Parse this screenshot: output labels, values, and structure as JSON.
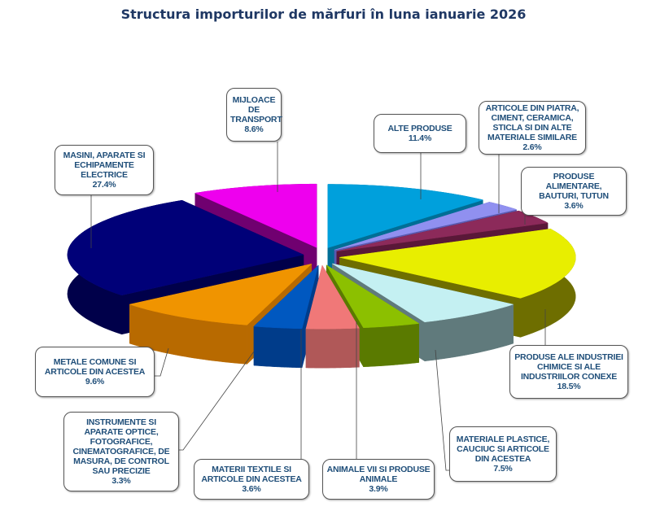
{
  "chart_data": {
    "type": "pie",
    "title": "Structura importurilor de mărfuri în luna ianuarie 2026",
    "unit": "%",
    "slices": [
      {
        "label": "ALTE PRODUSE",
        "value": 11.4,
        "value_label": "11.4%",
        "color": "#00a0dc",
        "wall": "#006e96"
      },
      {
        "label": "ARTICOLE DIN PIATRA, CIMENT, CERAMICA, STICLA SI DIN ALTE MATERIALE SIMILARE",
        "value": 2.6,
        "value_label": "2.6%",
        "color": "#9090f0",
        "wall": "#5a5ab0"
      },
      {
        "label": "PRODUSE ALIMENTARE, BAUTURI, TUTUN",
        "value": 3.6,
        "value_label": "3.6%",
        "color": "#8c2a5a",
        "wall": "#5a1838"
      },
      {
        "label": "PRODUSE ALE INDUSTRIEI CHIMICE SI ALE INDUSTRIILOR CONEXE",
        "value": 18.5,
        "value_label": "18.5%",
        "color": "#e8ee00",
        "wall": "#6e6e00"
      },
      {
        "label": "MATERIALE PLASTICE, CAUCIUC SI ARTICOLE DIN ACESTEA",
        "value": 7.5,
        "value_label": "7.5%",
        "color": "#c4f0f2",
        "wall": "#607a7c"
      },
      {
        "label": "ANIMALE  VII SI PRODUSE ANIMALE",
        "value": 3.9,
        "value_label": "3.9%",
        "color": "#8cc000",
        "wall": "#5a7a00"
      },
      {
        "label": "MATERII TEXTILE SI ARTICOLE DIN ACESTEA",
        "value": 3.6,
        "value_label": "3.6%",
        "color": "#f07878",
        "wall": "#b05858"
      },
      {
        "label": "INSTRUMENTE SI APARATE OPTICE, FOTOGRAFICE, CINEMATOGRAFICE, DE MASURA, DE CONTROL SAU PRECIZIE",
        "value": 3.3,
        "value_label": "3.3%",
        "color": "#0058c0",
        "wall": "#003c8a"
      },
      {
        "label": "METALE COMUNE SI ARTICOLE DIN ACESTEA",
        "value": 9.6,
        "value_label": "9.6%",
        "color": "#f09400",
        "wall": "#b86a00"
      },
      {
        "label": "MASINI, APARATE SI ECHIPAMENTE ELECTRICE",
        "value": 27.4,
        "value_label": "27.4%",
        "color": "#000078",
        "wall": "#00004a"
      },
      {
        "label": "MIJLOACE DE TRANSPORT",
        "value": 8.6,
        "value_label": "8.6%",
        "color": "#ee00ee",
        "wall": "#700070"
      }
    ]
  }
}
